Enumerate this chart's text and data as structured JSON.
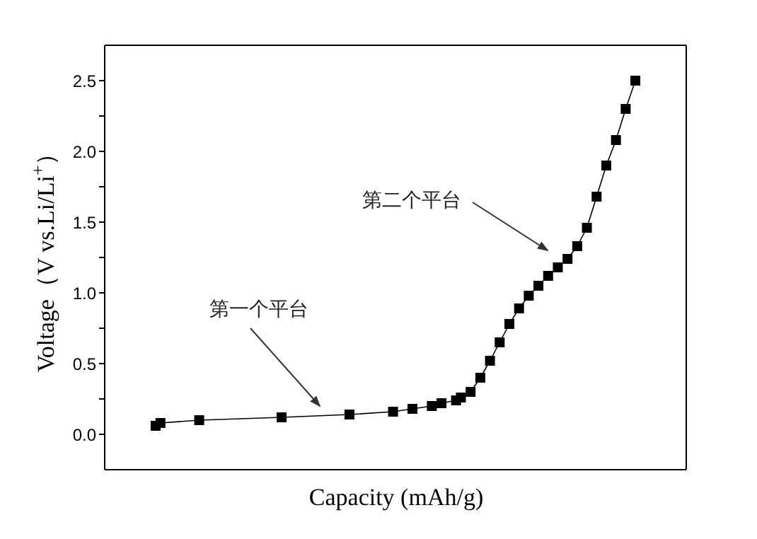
{
  "chart_data": {
    "type": "line",
    "xlabel": "Capacity (mAh/g)",
    "ylabel": "Voltage（V vs.Li/Li$^{+}$）",
    "categories": [
      null,
      null,
      null,
      null,
      null,
      null,
      null,
      null,
      null,
      null,
      null,
      null,
      null,
      null,
      null,
      null,
      null,
      null,
      null,
      null,
      null,
      null,
      null,
      null,
      null,
      null,
      null,
      null,
      null,
      null,
      null,
      null,
      null,
      null,
      null,
      null,
      null,
      null,
      null,
      null,
      null,
      null,
      null,
      null,
      null,
      null,
      null,
      null,
      null,
      null,
      null,
      null,
      null,
      null,
      null,
      null,
      null,
      null,
      null,
      null,
      null,
      null,
      null,
      null,
      null,
      null,
      null,
      null,
      null,
      null,
      null,
      null,
      null,
      null,
      null,
      null,
      null,
      null,
      null,
      null,
      null,
      null,
      null,
      null,
      null,
      null,
      null,
      null,
      null,
      null,
      null,
      null,
      null,
      null,
      null,
      null,
      null,
      null,
      null,
      null,
      null,
      null,
      null,
      null,
      null,
      null,
      null,
      null,
      null,
      null,
      null,
      null,
      null,
      null,
      null,
      null,
      null,
      null,
      null,
      null
    ],
    "values": [
      null,
      null,
      null,
      null,
      null,
      null,
      null,
      null,
      null,
      null,
      0.06,
      0.08,
      null,
      null,
      null,
      null,
      null,
      null,
      null,
      0.1,
      null,
      null,
      null,
      null,
      null,
      null,
      null,
      null,
      null,
      null,
      null,
      null,
      null,
      null,
      null,
      null,
      0.12,
      null,
      null,
      null,
      null,
      null,
      null,
      null,
      null,
      null,
      null,
      null,
      null,
      null,
      0.14,
      null,
      null,
      null,
      null,
      null,
      null,
      null,
      null,
      0.16,
      null,
      null,
      null,
      0.18,
      null,
      null,
      null,
      0.2,
      null,
      0.22,
      null,
      null,
      0.24,
      0.26,
      null,
      0.3,
      null,
      0.4,
      null,
      0.52,
      null,
      0.65,
      null,
      0.78,
      null,
      0.89,
      null,
      0.98,
      null,
      1.05,
      null,
      1.12,
      null,
      1.18,
      null,
      1.24,
      null,
      1.33,
      null,
      1.46,
      null,
      1.68,
      null,
      1.9,
      null,
      2.08,
      null,
      2.3,
      null,
      2.5,
      null,
      null,
      null,
      null,
      null,
      null,
      null,
      null,
      null,
      null
    ],
    "color": "#000000",
    "marker": "square",
    "line_style": "solid",
    "ylim": [
      -0.25,
      2.75
    ],
    "yticks": [
      {
        "value": 0,
        "label": "0.0"
      },
      {
        "value": 0.25,
        "label": null
      },
      0.5,
      {
        "value": 0.75,
        "label": null
      },
      {
        "value": 1,
        "label": "1.0"
      },
      {
        "value": 1.25,
        "label": null
      },
      1.5,
      {
        "value": 1.75,
        "label": null
      },
      {
        "value": 2,
        "label": "2.0"
      },
      {
        "value": 2.25,
        "label": null
      },
      2.5
    ],
    "tick_labels": "y",
    "annotations": [
      "第一个平台",
      "第二个平台"
    ]
  }
}
